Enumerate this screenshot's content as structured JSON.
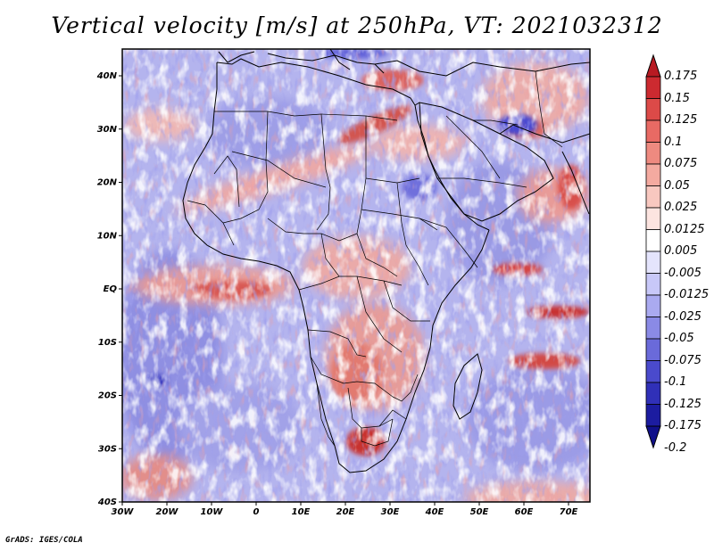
{
  "title": "Vertical velocity [m/s] at 250hPa, VT: 2021032312",
  "footer": "GrADS: IGES/COLA",
  "map": {
    "lon_range": [
      -30,
      75
    ],
    "lat_range": [
      -40,
      45
    ],
    "x_ticks": [
      "30W",
      "20W",
      "10W",
      "0",
      "10E",
      "20E",
      "30E",
      "40E",
      "50E",
      "60E",
      "70E"
    ],
    "y_ticks": [
      "40N",
      "30N",
      "20N",
      "10N",
      "EQ",
      "10S",
      "20S",
      "30S",
      "40S"
    ]
  },
  "colorbar": {
    "labels": [
      "0.175",
      "0.15",
      "0.125",
      "0.1",
      "0.075",
      "0.05",
      "0.025",
      "0.0125",
      "0.005",
      "-0.005",
      "-0.0125",
      "-0.025",
      "-0.05",
      "-0.075",
      "-0.1",
      "-0.125",
      "-0.175",
      "-0.2"
    ],
    "colors": [
      "#b81a22",
      "#cc2a30",
      "#dc4a48",
      "#e86a64",
      "#ee8a80",
      "#f4aaa0",
      "#f8c8c0",
      "#fce4e0",
      "#ffffff",
      "#e4e4fc",
      "#c8c8f8",
      "#aaaaf0",
      "#8a8ae6",
      "#6a6ada",
      "#4a4acc",
      "#3030b8",
      "#1c1ca0",
      "#10108a"
    ]
  }
}
